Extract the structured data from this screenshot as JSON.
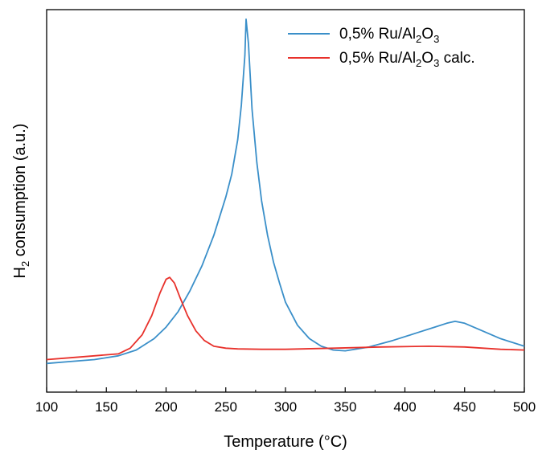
{
  "chart_data": {
    "type": "line",
    "title": "",
    "xlabel": "Temperature (°C)",
    "ylabel": {
      "prefix": "H",
      "sub": "2",
      "rest": " consumption (a.u.)"
    },
    "xlim": [
      100,
      500
    ],
    "ylim": [
      0,
      1
    ],
    "x_ticks": [
      100,
      150,
      200,
      250,
      300,
      350,
      400,
      450,
      500
    ],
    "y_ticks_labeled": false,
    "grid": false,
    "legend_position": "top-right",
    "series": [
      {
        "name": "0,5% Ru/Al2O3",
        "legend": {
          "a": "0,5% Ru/Al",
          "s1": "2",
          "b": "O",
          "s2": "3",
          "c": ""
        },
        "color": "#3a8fc9",
        "x": [
          100,
          120,
          140,
          160,
          175,
          190,
          200,
          210,
          220,
          230,
          240,
          250,
          255,
          260,
          263,
          266,
          267,
          269,
          272,
          276,
          280,
          285,
          290,
          295,
          300,
          310,
          320,
          330,
          340,
          350,
          370,
          390,
          410,
          425,
          435,
          442,
          450,
          465,
          480,
          500
        ],
        "y": [
          0.075,
          0.08,
          0.085,
          0.095,
          0.11,
          0.14,
          0.17,
          0.21,
          0.265,
          0.33,
          0.41,
          0.51,
          0.57,
          0.66,
          0.75,
          0.88,
          0.975,
          0.91,
          0.74,
          0.6,
          0.5,
          0.41,
          0.34,
          0.285,
          0.235,
          0.175,
          0.14,
          0.12,
          0.11,
          0.108,
          0.118,
          0.135,
          0.155,
          0.17,
          0.18,
          0.185,
          0.18,
          0.16,
          0.14,
          0.12
        ]
      },
      {
        "name": "0,5% Ru/Al2O3 calc.",
        "legend": {
          "a": "0,5% Ru/Al",
          "s1": "2",
          "b": "O",
          "s2": "3",
          "c": " calc."
        },
        "color": "#e8312b",
        "x": [
          100,
          120,
          140,
          160,
          170,
          180,
          188,
          195,
          200,
          203,
          207,
          212,
          218,
          225,
          232,
          240,
          250,
          260,
          280,
          300,
          340,
          380,
          420,
          450,
          480,
          500
        ],
        "y": [
          0.085,
          0.09,
          0.095,
          0.1,
          0.115,
          0.15,
          0.2,
          0.26,
          0.295,
          0.3,
          0.285,
          0.245,
          0.2,
          0.16,
          0.135,
          0.12,
          0.115,
          0.113,
          0.112,
          0.112,
          0.115,
          0.118,
          0.12,
          0.118,
          0.112,
          0.11
        ]
      }
    ]
  }
}
